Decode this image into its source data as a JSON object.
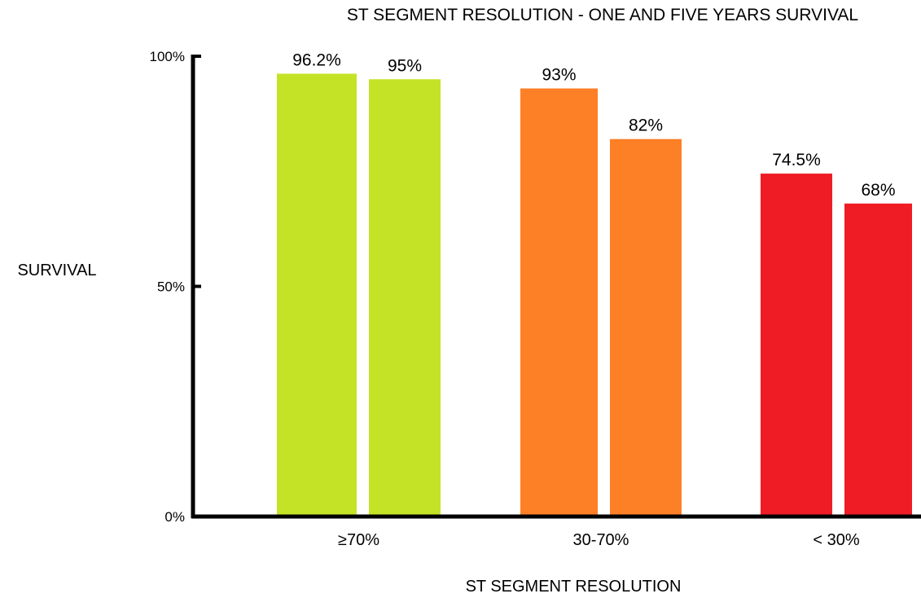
{
  "chart_data": {
    "type": "bar",
    "title": "ST SEGMENT RESOLUTION - ONE AND FIVE YEARS SURVIVAL",
    "xlabel": "ST SEGMENT RESOLUTION",
    "ylabel": "SURVIVAL",
    "categories": [
      "≥70%",
      "30-70%",
      "< 30%"
    ],
    "series": [
      {
        "values": [
          96.2,
          93,
          74.5
        ],
        "labels": [
          "96.2%",
          "93%",
          "74.5%"
        ]
      },
      {
        "values": [
          95,
          82,
          68
        ],
        "labels": [
          "95%",
          "82%",
          "68%"
        ]
      }
    ],
    "category_colors": [
      "#c5e326",
      "#fd7f26",
      "#ef1c25"
    ],
    "ylim": [
      0,
      100
    ],
    "yticks": [
      0,
      50,
      100
    ],
    "ytick_labels": [
      "0%",
      "50%",
      "100%"
    ],
    "grid": false,
    "legend": "none"
  }
}
